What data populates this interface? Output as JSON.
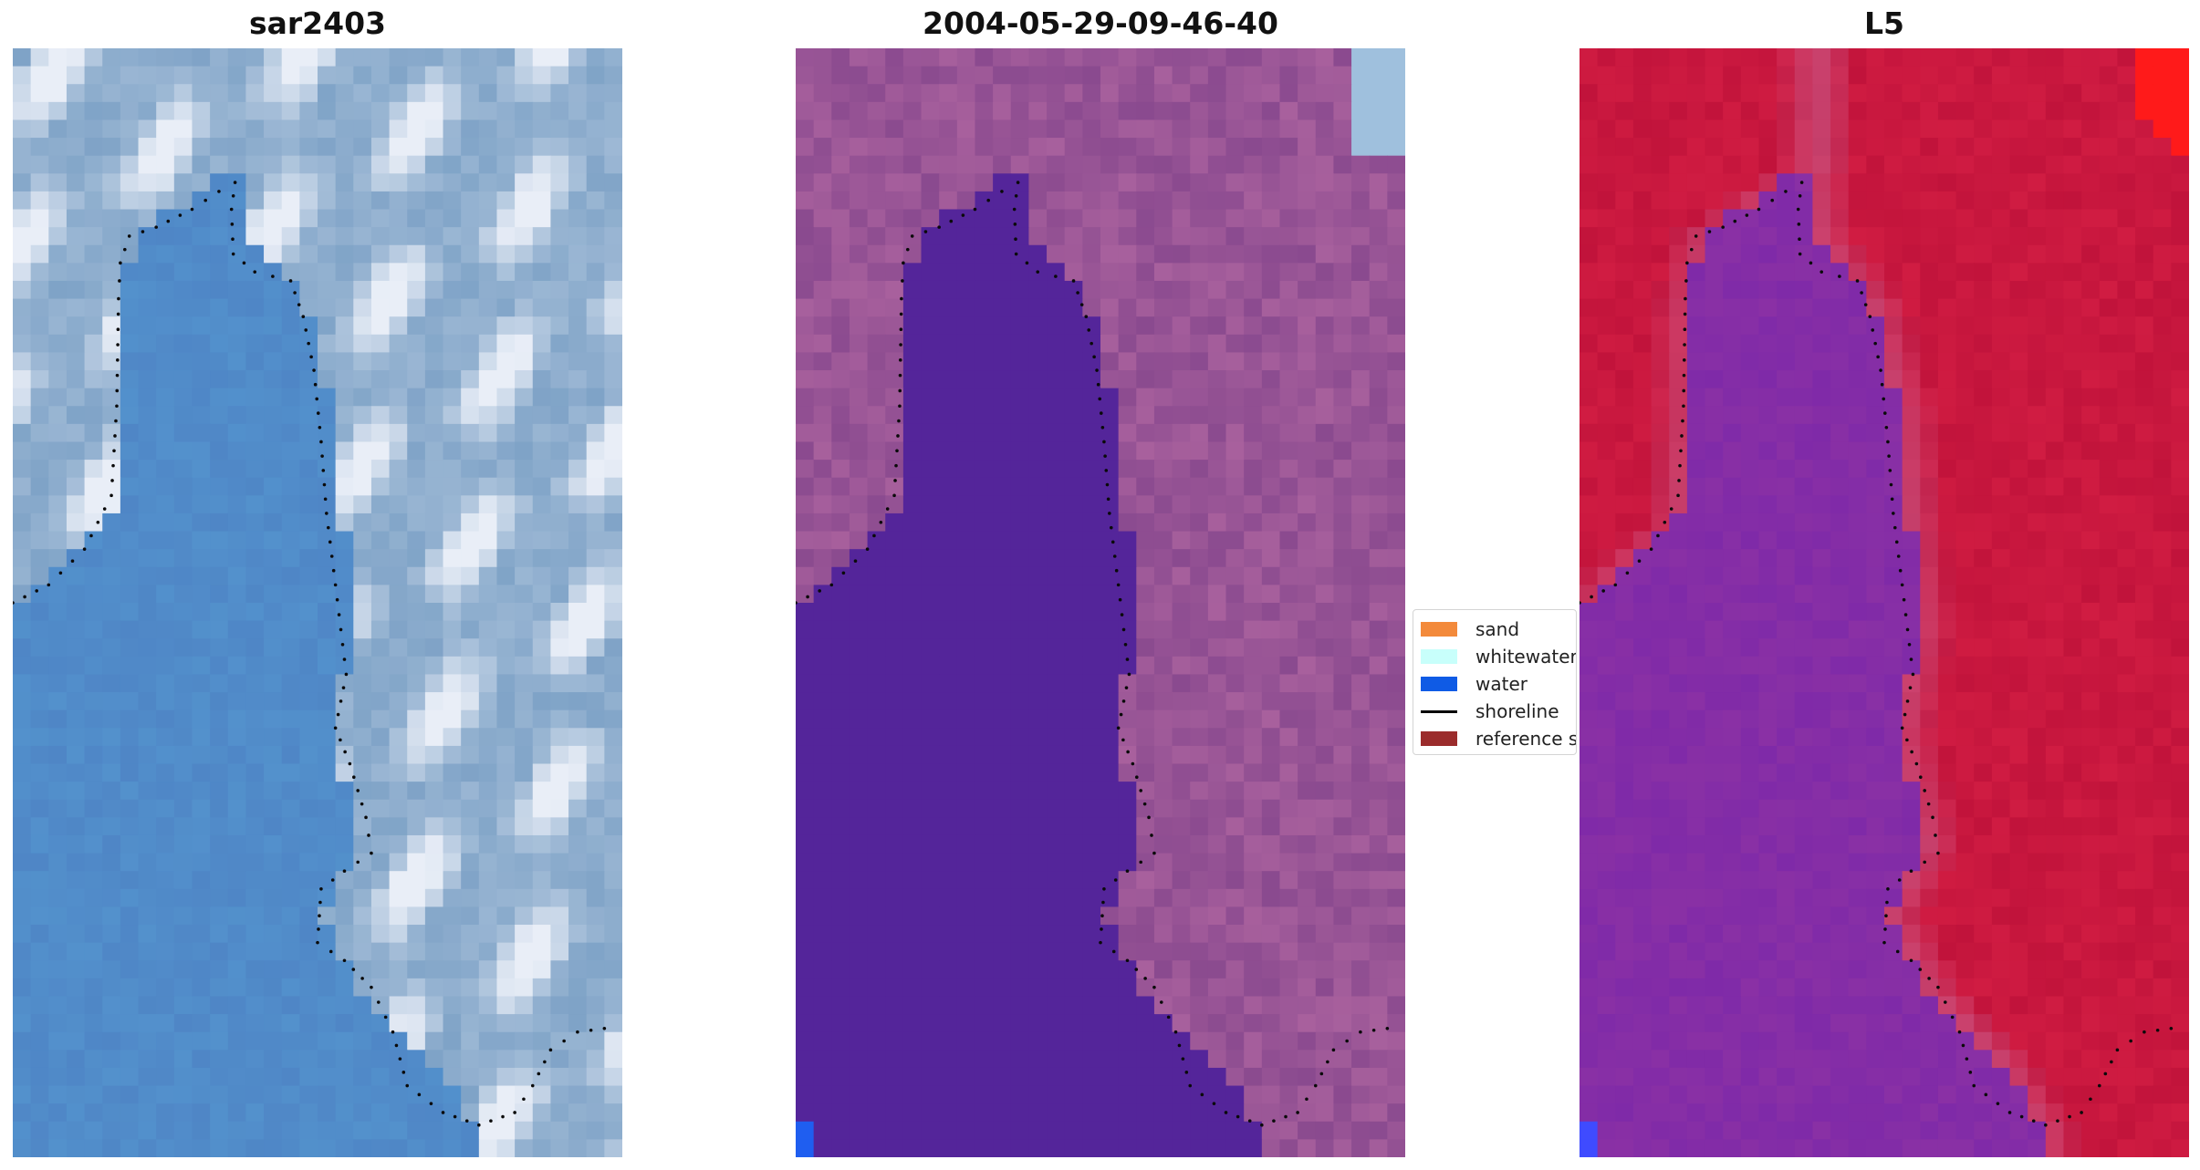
{
  "panels": [
    {
      "title": "sar2403",
      "icon": "satellite-image-rgb",
      "colors": {
        "base": "#7fa3c7",
        "water": "#4f86c6",
        "bright": "#e9eef7",
        "shore": "#0a0a0a"
      }
    },
    {
      "title": "2004-05-29-09-46-40",
      "icon": "classified-image",
      "colors": {
        "land": "#8a4a8f",
        "land_light": "#b56aa3",
        "water": "#54259a",
        "accent": "#9fc0dd",
        "shore": "#0a0a0a",
        "water_block": "#1f5ef0"
      }
    },
    {
      "title": "L5",
      "icon": "index-image",
      "colors": {
        "land": "#c1133b",
        "land_light": "#d01c42",
        "water": "#7f2aa8",
        "accent": "#ff1a1a",
        "shore": "#0a0a0a",
        "water_block": "#3f4bff"
      }
    }
  ],
  "legend": {
    "items": [
      {
        "label": "sand",
        "type": "swatch",
        "color": "#f38a3b"
      },
      {
        "label": "whitewater",
        "type": "swatch",
        "color": "#c8fffb"
      },
      {
        "label": "water",
        "type": "swatch",
        "color": "#0f5be5"
      },
      {
        "label": "shoreline",
        "type": "line",
        "color": "#000000"
      },
      {
        "label": "reference s",
        "type": "swatch",
        "color": "#9b2c2c"
      }
    ]
  }
}
